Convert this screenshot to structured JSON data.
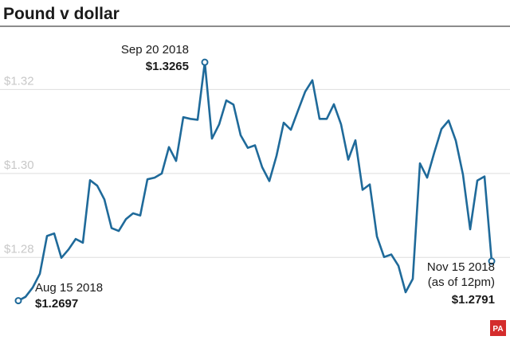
{
  "chart_data": {
    "type": "line",
    "title": "Pound v dollar",
    "xlabel": "",
    "ylabel": "",
    "y_ticks": [
      "$1.32",
      "$1.30",
      "$1.28"
    ],
    "y_tick_values": [
      1.32,
      1.3,
      1.28
    ],
    "ylim": [
      1.2645,
      1.3345
    ],
    "grid": true,
    "series": [
      {
        "color": "#1f6a9a",
        "values": [
          1.2697,
          1.2706,
          1.2728,
          1.2761,
          1.2851,
          1.2857,
          1.2799,
          1.2819,
          1.2844,
          1.2835,
          1.2984,
          1.2971,
          1.2938,
          1.287,
          1.2863,
          1.2891,
          1.2905,
          1.29,
          1.2986,
          1.299,
          1.3,
          1.3063,
          1.303,
          1.3134,
          1.313,
          1.3128,
          1.3265,
          1.3083,
          1.3117,
          1.3174,
          1.3164,
          1.3091,
          1.3061,
          1.3067,
          1.3015,
          1.2982,
          1.3042,
          1.3121,
          1.3104,
          1.315,
          1.3195,
          1.3222,
          1.313,
          1.313,
          1.3165,
          1.3117,
          1.3033,
          1.3079,
          1.2961,
          1.2974,
          1.285,
          1.2801,
          1.2807,
          1.278,
          1.2717,
          1.2749,
          1.3024,
          1.299,
          1.305,
          1.3106,
          1.3126,
          1.3078,
          1.2997,
          1.2867,
          1.2983,
          1.2993,
          1.2791
        ]
      }
    ],
    "annotations": [
      {
        "date": "Aug 15 2018",
        "note": "",
        "value": "$1.2697"
      },
      {
        "date": "Sep 20 2018",
        "note": "",
        "value": "$1.3265"
      },
      {
        "date": "Nov 15 2018",
        "note": "(as of 12pm)",
        "value": "$1.2791"
      }
    ]
  },
  "credit": "PA"
}
